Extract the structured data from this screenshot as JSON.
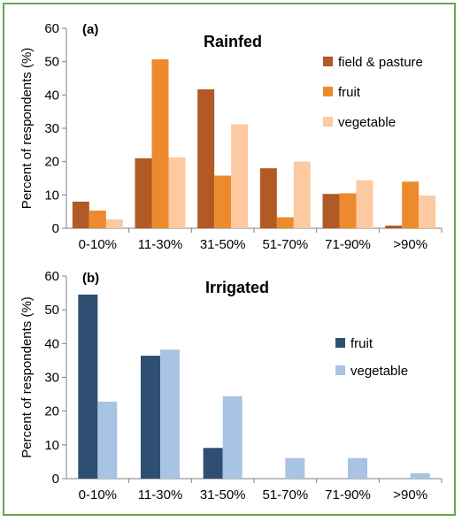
{
  "chart_data": [
    {
      "type": "bar",
      "panel_label": "(a)",
      "title": "Rainfed",
      "ylabel": "Percent of respondents (%)",
      "xlabel": "",
      "ylim": [
        0,
        60
      ],
      "yticks": [
        "0",
        "10",
        "20",
        "30",
        "40",
        "50",
        "60"
      ],
      "categories": [
        "0-10%",
        "11-30%",
        "31-50%",
        "51-70%",
        "71-90%",
        ">90%"
      ],
      "legend_position": "top-right",
      "grid": false,
      "series": [
        {
          "name": "field & pasture",
          "color": "#b15a26",
          "values": [
            8,
            21,
            41.7,
            18,
            10.3,
            0.8
          ]
        },
        {
          "name": "fruit",
          "color": "#ee8a2e",
          "values": [
            5.3,
            50.7,
            15.8,
            3.3,
            10.5,
            14
          ]
        },
        {
          "name": "vegetable",
          "color": "#fcc9a0",
          "values": [
            2.7,
            21.3,
            31.2,
            20,
            14.4,
            9.8
          ]
        }
      ]
    },
    {
      "type": "bar",
      "panel_label": "(b)",
      "title": "Irrigated",
      "ylabel": "Percent of respondents (%)",
      "xlabel": "",
      "ylim": [
        0,
        60
      ],
      "yticks": [
        "0",
        "10",
        "20",
        "30",
        "40",
        "50",
        "60"
      ],
      "categories": [
        "0-10%",
        "11-30%",
        "31-50%",
        "51-70%",
        "71-90%",
        ">90%"
      ],
      "legend_position": "right",
      "grid": false,
      "series": [
        {
          "name": "fruit",
          "color": "#2e4f72",
          "values": [
            54.5,
            36.4,
            9.1,
            0,
            0,
            0
          ]
        },
        {
          "name": "vegetable",
          "color": "#a8c3e4",
          "values": [
            22.8,
            38.2,
            24.4,
            6.1,
            6.1,
            1.6
          ]
        }
      ]
    }
  ]
}
